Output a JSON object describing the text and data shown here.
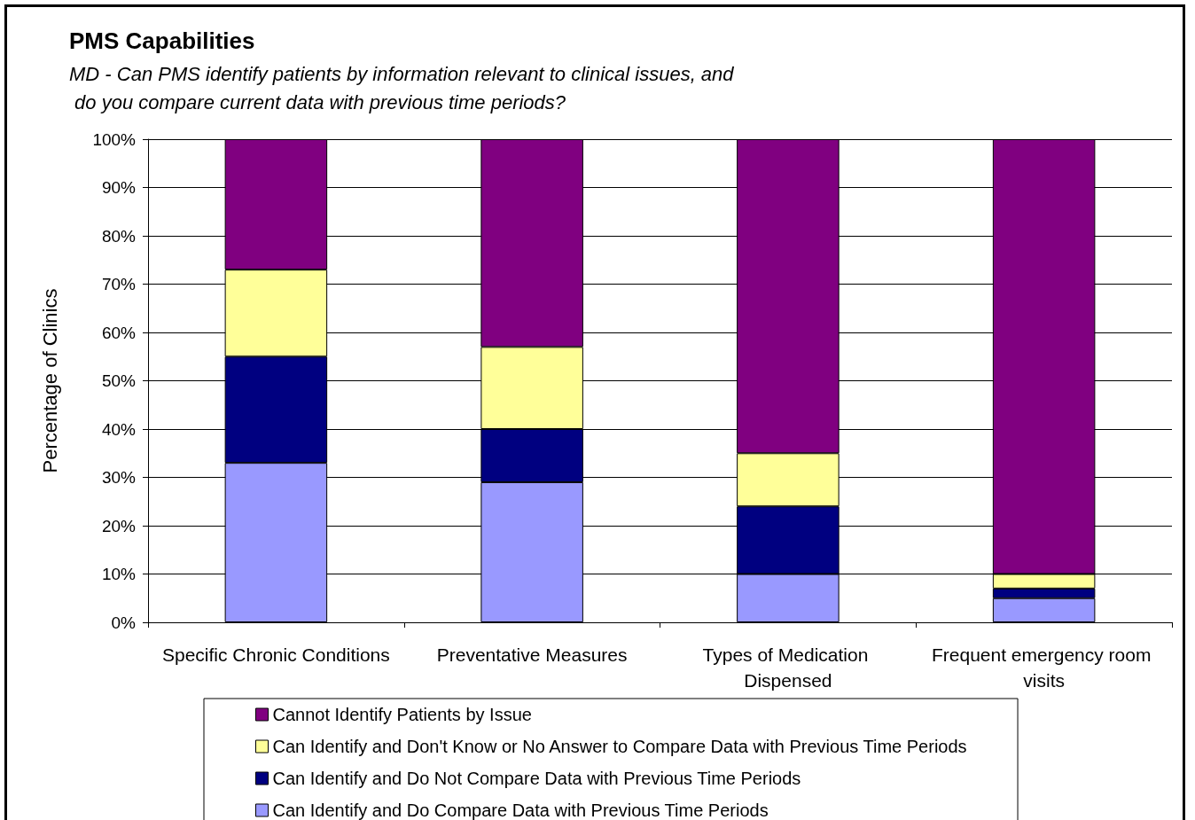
{
  "chart_data": {
    "type": "bar",
    "stacked": true,
    "title": "PMS Capabilities",
    "subtitle": "MD - Can PMS identify patients by information relevant to clinical issues, and do you compare current data with previous time periods?",
    "ylabel": "Percentage of Clinics",
    "categories": [
      "Specific Chronic Conditions",
      "Preventative Measures",
      "Types of Medication Dispensed",
      "Frequent emergency room visits"
    ],
    "series": [
      {
        "name": "Can Identify and Do Compare Data with Previous Time Periods",
        "color": "#9999ff",
        "values": [
          33,
          29,
          10,
          5
        ]
      },
      {
        "name": "Can Identify and Do Not Compare Data with Previous Time Periods",
        "color": "#000080",
        "values": [
          22,
          11,
          14,
          2
        ]
      },
      {
        "name": "Can Identify and Don't Know or No Answer to Compare Data with Previous Time Periods",
        "color": "#ffff99",
        "values": [
          18,
          17,
          11,
          3
        ]
      },
      {
        "name": "Cannot Identify Patients by Issue",
        "color": "#800080",
        "values": [
          27,
          43,
          65,
          90
        ]
      }
    ],
    "ylim": [
      0,
      100
    ],
    "yticks": [
      {
        "value": 0,
        "label": "0%"
      },
      {
        "value": 10,
        "label": "10%"
      },
      {
        "value": 20,
        "label": "20%"
      },
      {
        "value": 30,
        "label": "30%"
      },
      {
        "value": 40,
        "label": "40%"
      },
      {
        "value": 50,
        "label": "50%"
      },
      {
        "value": 60,
        "label": "60%"
      },
      {
        "value": 70,
        "label": "70%"
      },
      {
        "value": 80,
        "label": "80%"
      },
      {
        "value": 90,
        "label": "90%"
      },
      {
        "value": 100,
        "label": "100%"
      }
    ],
    "grid": "y",
    "legend": "bottom"
  }
}
